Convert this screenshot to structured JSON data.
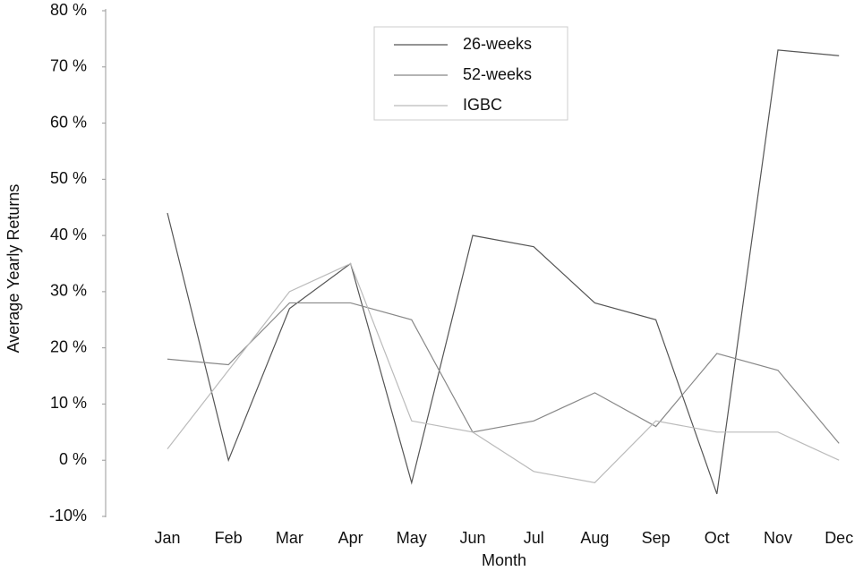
{
  "chart_data": {
    "type": "line",
    "x_label": "Month",
    "y_label": "Average Yearly Returns",
    "categories": [
      "Jan",
      "Feb",
      "Mar",
      "Apr",
      "May",
      "Jun",
      "Jul",
      "Aug",
      "Sep",
      "Oct",
      "Nov",
      "Dec"
    ],
    "series": [
      {
        "name": "26-weeks",
        "color": "#555555",
        "values": [
          44,
          0,
          27,
          35,
          -4,
          40,
          38,
          28,
          25,
          -6,
          73,
          72
        ]
      },
      {
        "name": "52-weeks",
        "color": "#888888",
        "values": [
          18,
          17,
          28,
          28,
          25,
          5,
          7,
          12,
          6,
          19,
          16,
          3
        ]
      },
      {
        "name": "IGBC",
        "color": "#bbbbbb",
        "values": [
          2,
          16,
          30,
          35,
          7,
          5,
          -2,
          -4,
          7,
          5,
          5,
          0
        ]
      }
    ],
    "ylim": [
      -10,
      80
    ],
    "yticks": [
      {
        "value": -10,
        "label": "-10%"
      },
      {
        "value": 0,
        "label": "0  %"
      },
      {
        "value": 10,
        "label": "10 %"
      },
      {
        "value": 20,
        "label": "20 %"
      },
      {
        "value": 30,
        "label": "30 %"
      },
      {
        "value": 40,
        "label": "40 %"
      },
      {
        "value": 50,
        "label": "50 %"
      },
      {
        "value": 60,
        "label": "60 %"
      },
      {
        "value": 70,
        "label": "70 %"
      },
      {
        "value": 80,
        "label": "80 %"
      }
    ],
    "legend": "top"
  }
}
